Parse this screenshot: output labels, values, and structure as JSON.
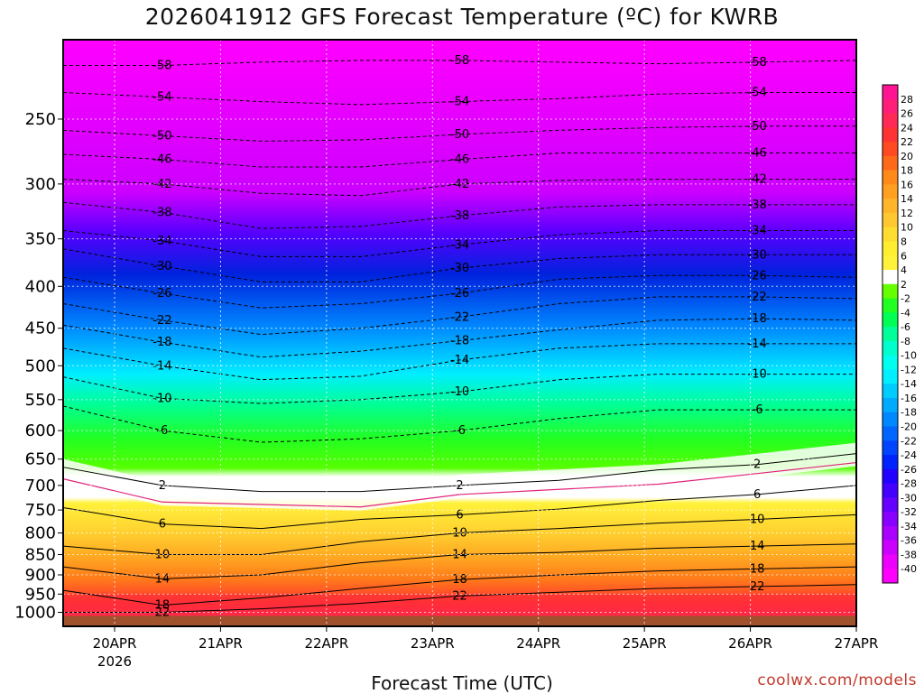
{
  "title": "2026041912 GFS Forecast Temperature (ºC) for KWRB",
  "xlabel": "Forecast Time (UTC)",
  "credit": "coolwx.com/models",
  "chart_data": {
    "type": "heatmap",
    "title": "2026041912 GFS Forecast Temperature (ºC) for KWRB",
    "xlabel": "Forecast Time (UTC)",
    "ylabel": "",
    "y_scale": "pressure (log)",
    "y_range_hpa": [
      200,
      1040
    ],
    "y_ticks": [
      250,
      300,
      350,
      400,
      450,
      500,
      550,
      600,
      650,
      700,
      750,
      800,
      850,
      900,
      950,
      1000
    ],
    "x_range_days": [
      "2026-04-19 12Z",
      "2026-04-27 00Z"
    ],
    "x_ticks": [
      "20APR",
      "21APR",
      "22APR",
      "23APR",
      "24APR",
      "25APR",
      "26APR",
      "27APR"
    ],
    "x_tick_sublabel": "2026",
    "colorbar_labels": [
      28,
      26,
      24,
      22,
      20,
      18,
      16,
      14,
      12,
      10,
      8,
      6,
      4,
      2,
      -2,
      -4,
      -6,
      -8,
      -10,
      -12,
      -14,
      -16,
      -18,
      -20,
      -22,
      -24,
      -26,
      -28,
      -30,
      -32,
      -34,
      -36,
      -38,
      -40
    ],
    "colorbar_colors": [
      "#ff1493",
      "#ff1e78",
      "#ff2a55",
      "#ff3333",
      "#ff4a22",
      "#ff6a1a",
      "#ff8a1a",
      "#ffa020",
      "#ffb62a",
      "#ffc830",
      "#ffdc30",
      "#ffee30",
      "#fff23a",
      "#ffffff",
      "#66ff00",
      "#22ff22",
      "#00ff55",
      "#00ff99",
      "#00ffcc",
      "#00ffee",
      "#00eeff",
      "#00ccff",
      "#00aaff",
      "#0088ff",
      "#0066ff",
      "#0044ff",
      "#0022ff",
      "#2200ff",
      "#4400ff",
      "#6600ff",
      "#8800ff",
      "#aa00ff",
      "#cc00ff",
      "#ee00ff",
      "#ff00ff"
    ],
    "isotherms": [
      {
        "temp": -58,
        "pressure": [
          215,
          215,
          213,
          212,
          212,
          213,
          214,
          213,
          212
        ],
        "label": "-58"
      },
      {
        "temp": -54,
        "pressure": [
          232,
          235,
          238,
          240,
          238,
          236,
          233,
          232,
          232
        ],
        "label": "-54"
      },
      {
        "temp": -50,
        "pressure": [
          258,
          262,
          266,
          265,
          261,
          258,
          256,
          255,
          255
        ],
        "label": "-50"
      },
      {
        "temp": -46,
        "pressure": [
          276,
          280,
          286,
          286,
          280,
          275,
          275,
          275,
          275
        ],
        "label": "-46"
      },
      {
        "temp": -42,
        "pressure": [
          296,
          300,
          308,
          310,
          300,
          297,
          296,
          296,
          296
        ],
        "label": "-42"
      },
      {
        "temp": -38,
        "pressure": [
          316,
          325,
          340,
          338,
          328,
          320,
          318,
          318,
          318
        ],
        "label": "-38"
      },
      {
        "temp": -34,
        "pressure": [
          342,
          352,
          368,
          368,
          356,
          346,
          342,
          342,
          342
        ],
        "label": "-34"
      },
      {
        "temp": -30,
        "pressure": [
          360,
          378,
          395,
          395,
          380,
          370,
          366,
          366,
          366
        ],
        "label": "-30"
      },
      {
        "temp": -26,
        "pressure": [
          390,
          408,
          425,
          420,
          408,
          392,
          388,
          388,
          390
        ],
        "label": "-26"
      },
      {
        "temp": -22,
        "pressure": [
          420,
          440,
          458,
          450,
          436,
          420,
          412,
          412,
          414
        ],
        "label": "-22"
      },
      {
        "temp": -18,
        "pressure": [
          446,
          468,
          488,
          480,
          466,
          452,
          440,
          438,
          440
        ],
        "label": "-18"
      },
      {
        "temp": -14,
        "pressure": [
          476,
          500,
          520,
          515,
          492,
          476,
          470,
          470,
          470
        ],
        "label": "-14"
      },
      {
        "temp": -10,
        "pressure": [
          516,
          548,
          556,
          550,
          538,
          520,
          512,
          512,
          512
        ],
        "label": "-10"
      },
      {
        "temp": -6,
        "pressure": [
          560,
          600,
          620,
          614,
          600,
          580,
          566,
          566,
          566
        ],
        "label": "-6"
      },
      {
        "temp": 2,
        "pressure": [
          665,
          700,
          712,
          712,
          700,
          690,
          670,
          660,
          640
        ],
        "label": "2"
      },
      {
        "temp": 6,
        "pressure": [
          745,
          780,
          790,
          770,
          760,
          748,
          730,
          718,
          700
        ],
        "label": "6"
      },
      {
        "temp": 10,
        "pressure": [
          830,
          850,
          850,
          820,
          800,
          790,
          778,
          770,
          760
        ],
        "label": "10"
      },
      {
        "temp": 14,
        "pressure": [
          880,
          910,
          900,
          870,
          850,
          845,
          835,
          830,
          825
        ],
        "label": "14"
      },
      {
        "temp": 18,
        "pressure": [
          940,
          980,
          960,
          935,
          912,
          900,
          890,
          885,
          880
        ],
        "label": "18"
      },
      {
        "temp": 22,
        "pressure": [
          1000,
          1000,
          990,
          975,
          955,
          945,
          935,
          930,
          925
        ],
        "label": "22"
      }
    ],
    "freezing_level_hpa": [
      670,
      715,
      720,
      725,
      700,
      690,
      680,
      660,
      640
    ],
    "surface_hpa": 1010
  }
}
